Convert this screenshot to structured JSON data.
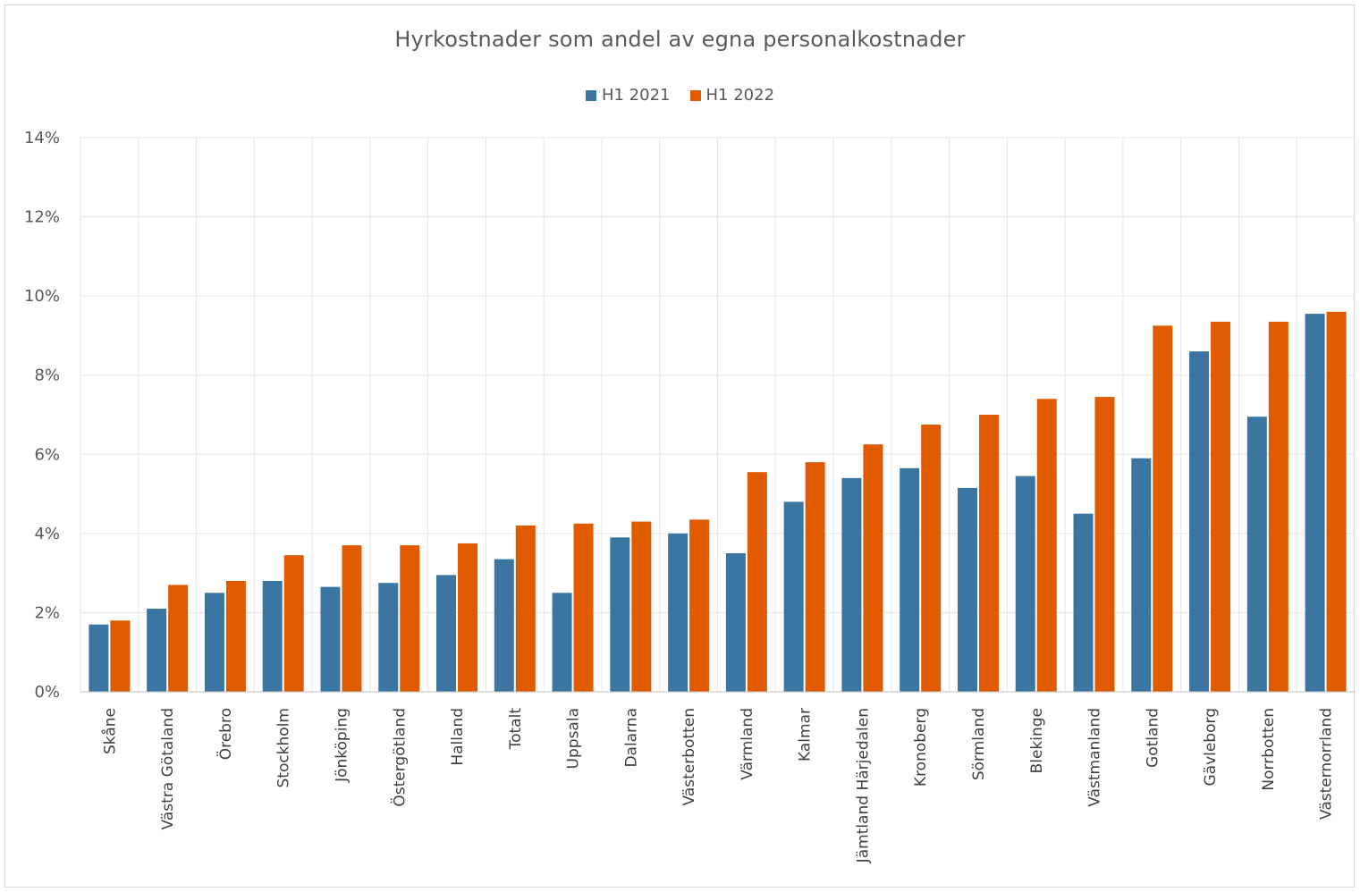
{
  "chart_data": {
    "type": "bar",
    "title": "Hyrkostnader som andel av egna personalkostnader",
    "xlabel": "",
    "ylabel": "",
    "ylim": [
      0,
      14
    ],
    "y_ticks": [
      "0%",
      "2%",
      "4%",
      "6%",
      "8%",
      "10%",
      "12%",
      "14%"
    ],
    "y_tick_values": [
      0,
      2,
      4,
      6,
      8,
      10,
      12,
      14
    ],
    "grid": true,
    "legend_position": "top",
    "categories": [
      "Skåne",
      "Västra Götaland",
      "Örebro",
      "Stockholm",
      "Jönköping",
      "Östergötland",
      "Halland",
      "Totalt",
      "Uppsala",
      "Dalarna",
      "Västerbotten",
      "Värmland",
      "Kalmar",
      "Jämtland Härjedalen",
      "Kronoberg",
      "Sörmland",
      "Blekinge",
      "Västmanland",
      "Gotland",
      "Gävleborg",
      "Norrbotten",
      "Västernorrland"
    ],
    "series": [
      {
        "name": "H1 2021",
        "color": "#3b76a3",
        "values": [
          1.7,
          2.1,
          2.5,
          2.8,
          2.65,
          2.75,
          2.95,
          3.35,
          2.5,
          3.9,
          4.0,
          3.5,
          4.8,
          5.4,
          5.65,
          5.15,
          5.45,
          4.5,
          5.9,
          8.6,
          6.95,
          9.55
        ]
      },
      {
        "name": "H1 2022",
        "color": "#e05a00",
        "values": [
          1.8,
          2.7,
          2.8,
          3.45,
          3.7,
          3.7,
          3.75,
          4.2,
          4.25,
          4.3,
          4.35,
          5.55,
          5.8,
          6.25,
          6.75,
          7.0,
          7.4,
          7.45,
          9.25,
          9.35,
          9.35,
          9.6
        ]
      }
    ]
  },
  "colors": {
    "grid": "#e6e6e6",
    "axis": "#bfbfbf",
    "text": "#595959",
    "plot_background": "#ffffff"
  }
}
